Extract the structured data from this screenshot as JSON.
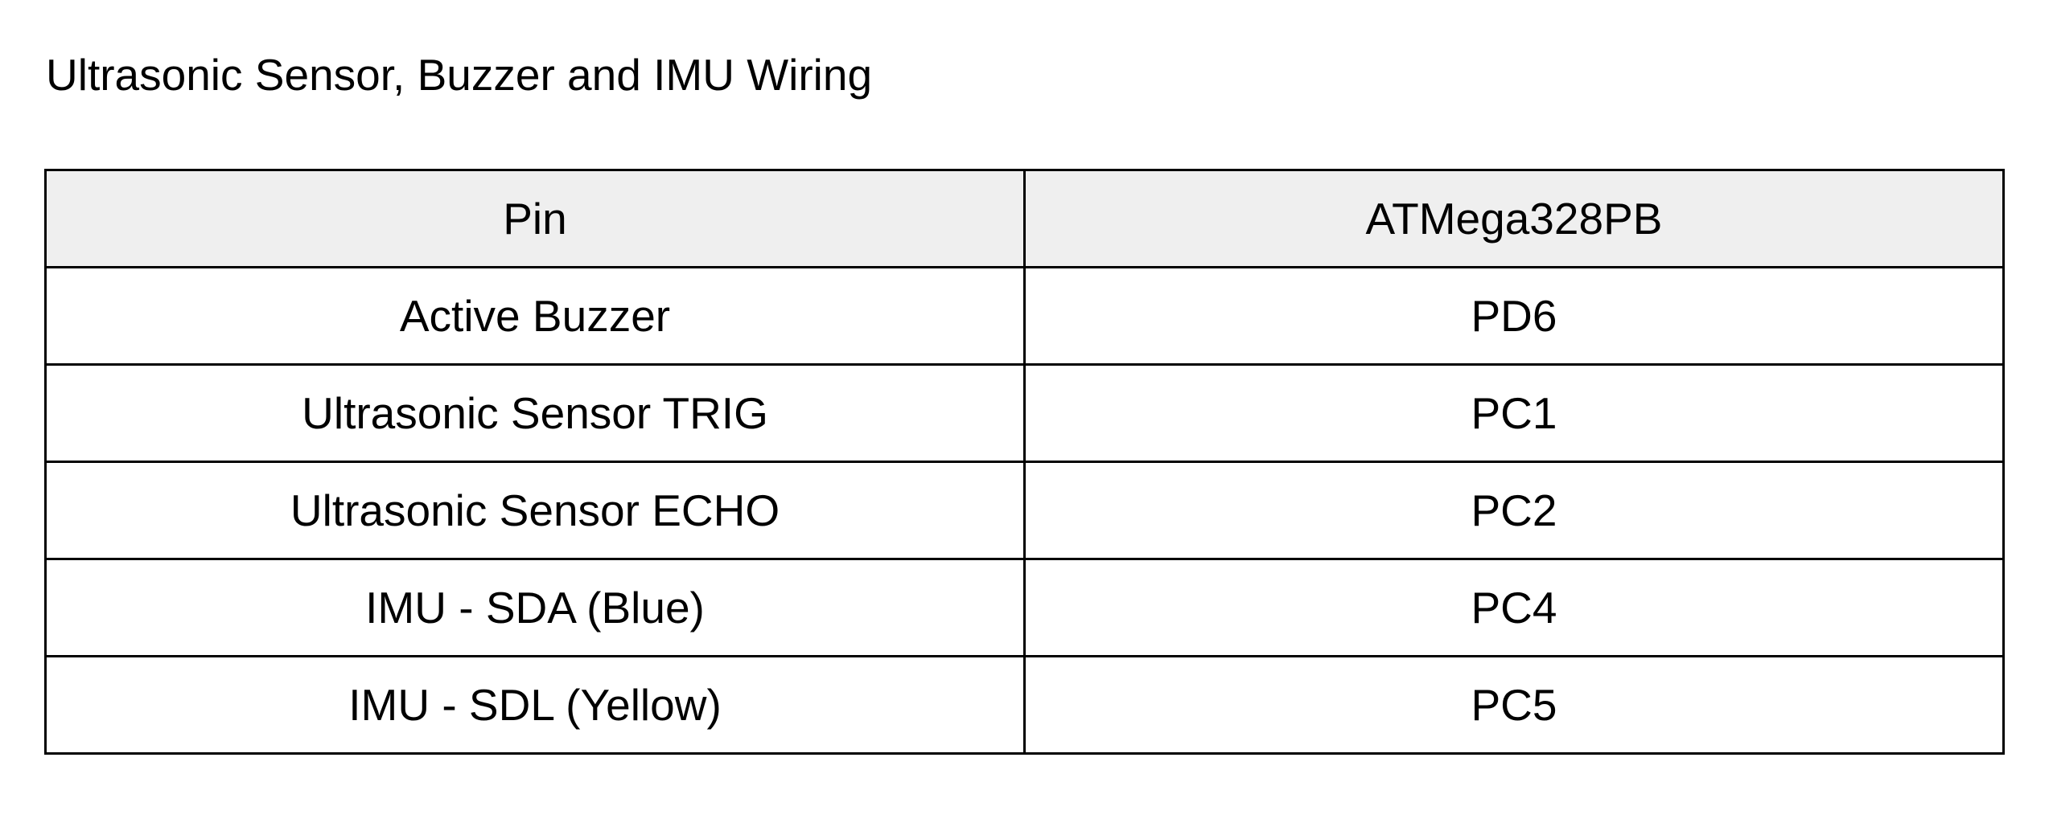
{
  "document": {
    "title": "Ultrasonic Sensor, Buzzer and IMU Wiring"
  },
  "table": {
    "headers": [
      "Pin",
      "ATMega328PB"
    ],
    "rows": [
      [
        "Active Buzzer",
        "PD6"
      ],
      [
        "Ultrasonic Sensor TRIG",
        "PC1"
      ],
      [
        "Ultrasonic Sensor ECHO",
        "PC2"
      ],
      [
        "IMU - SDA (Blue)",
        "PC4"
      ],
      [
        "IMU - SDL (Yellow)",
        "PC5"
      ]
    ],
    "header_background": "#efefef",
    "border_color": "#000000"
  }
}
